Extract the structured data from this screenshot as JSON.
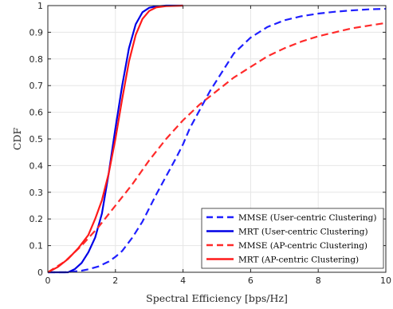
{
  "chart_data": {
    "type": "line",
    "title": "",
    "xlabel": "Spectral Efficiency [bps/Hz]",
    "ylabel": "CDF",
    "xlim": [
      0,
      10
    ],
    "ylim": [
      0,
      1
    ],
    "xticks": [
      "0",
      "2",
      "4",
      "6",
      "8",
      "10"
    ],
    "yticks": [
      "0",
      "0.1",
      "0.2",
      "0.3",
      "0.4",
      "0.5",
      "0.6",
      "0.7",
      "0.8",
      "0.9",
      "1"
    ],
    "grid": true,
    "legend_position": "bottom-right",
    "series": [
      {
        "name": "MMSE (User-centric Clustering)",
        "color": "#1f1fff",
        "dash": true,
        "x": [
          0,
          0.5,
          0.8,
          1.0,
          1.2,
          1.5,
          1.8,
          2.0,
          2.2,
          2.5,
          2.8,
          3.0,
          3.2,
          3.5,
          3.8,
          4.0,
          4.2,
          4.5,
          4.8,
          5.0,
          5.5,
          6.0,
          6.5,
          7.0,
          7.5,
          8.0,
          8.5,
          9.0,
          9.5,
          10.0
        ],
        "y": [
          0,
          0.0,
          0.003,
          0.006,
          0.011,
          0.022,
          0.04,
          0.058,
          0.08,
          0.13,
          0.19,
          0.24,
          0.29,
          0.36,
          0.43,
          0.48,
          0.54,
          0.61,
          0.68,
          0.72,
          0.82,
          0.88,
          0.92,
          0.945,
          0.96,
          0.97,
          0.977,
          0.982,
          0.986,
          0.988
        ]
      },
      {
        "name": "MRT (User-centric Clustering)",
        "color": "#0000e6",
        "dash": false,
        "x": [
          0,
          0.6,
          0.8,
          1.0,
          1.2,
          1.4,
          1.6,
          1.8,
          2.0,
          2.2,
          2.4,
          2.6,
          2.8,
          3.0,
          3.2,
          3.5,
          4.0
        ],
        "y": [
          0,
          0.0,
          0.012,
          0.035,
          0.075,
          0.13,
          0.22,
          0.37,
          0.54,
          0.7,
          0.84,
          0.93,
          0.975,
          0.992,
          0.997,
          1.0,
          1.0
        ]
      },
      {
        "name": "MMSE (AP-centric Clustering)",
        "color": "#ff2a2a",
        "dash": true,
        "x": [
          0,
          0.5,
          1.0,
          1.5,
          2.0,
          2.5,
          3.0,
          3.5,
          4.0,
          4.5,
          5.0,
          5.5,
          6.0,
          6.5,
          7.0,
          7.5,
          8.0,
          8.5,
          9.0,
          9.5,
          10.0
        ],
        "y": [
          0,
          0.04,
          0.1,
          0.17,
          0.25,
          0.33,
          0.42,
          0.5,
          0.57,
          0.63,
          0.68,
          0.73,
          0.77,
          0.81,
          0.84,
          0.865,
          0.885,
          0.9,
          0.915,
          0.925,
          0.935
        ]
      },
      {
        "name": "MRT (AP-centric Clustering)",
        "color": "#ff1a1a",
        "dash": false,
        "x": [
          0,
          0.3,
          0.6,
          0.9,
          1.2,
          1.4,
          1.6,
          1.8,
          2.0,
          2.2,
          2.4,
          2.6,
          2.8,
          3.0,
          3.2,
          3.5,
          4.0
        ],
        "y": [
          0,
          0.02,
          0.05,
          0.09,
          0.14,
          0.2,
          0.27,
          0.37,
          0.5,
          0.65,
          0.79,
          0.89,
          0.95,
          0.98,
          0.993,
          0.998,
          1.0
        ]
      }
    ]
  }
}
